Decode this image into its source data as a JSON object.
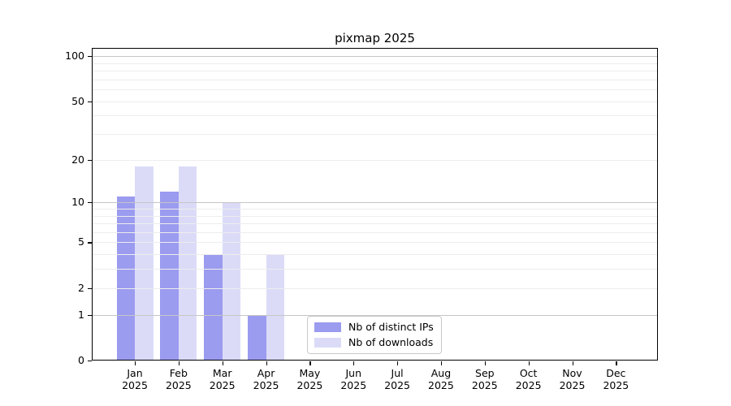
{
  "title": "pixmap 2025",
  "chart_data": {
    "type": "bar",
    "title": "pixmap 2025",
    "x_tick_labels": [
      {
        "month": "Jan",
        "year": "2025"
      },
      {
        "month": "Feb",
        "year": "2025"
      },
      {
        "month": "Mar",
        "year": "2025"
      },
      {
        "month": "Apr",
        "year": "2025"
      },
      {
        "month": "May",
        "year": "2025"
      },
      {
        "month": "Jun",
        "year": "2025"
      },
      {
        "month": "Jul",
        "year": "2025"
      },
      {
        "month": "Aug",
        "year": "2025"
      },
      {
        "month": "Sep",
        "year": "2025"
      },
      {
        "month": "Oct",
        "year": "2025"
      },
      {
        "month": "Nov",
        "year": "2025"
      },
      {
        "month": "Dec",
        "year": "2025"
      }
    ],
    "series": [
      {
        "name": "Nb of distinct IPs",
        "color": "#9b9bf0",
        "values": [
          11,
          12,
          4,
          1,
          0,
          0,
          0,
          0,
          0,
          0,
          0,
          0
        ]
      },
      {
        "name": "Nb of downloads",
        "color": "#dbdbf8",
        "values": [
          18,
          18,
          10,
          4,
          0,
          0,
          0,
          0,
          0,
          0,
          0,
          0
        ]
      }
    ],
    "y_axis": {
      "scale": "log10(1+v)",
      "tick_values": [
        0,
        1,
        2,
        5,
        10,
        20,
        50,
        100
      ],
      "major_grid_values": [
        1,
        10,
        100
      ],
      "minor_grid_values": [
        2,
        3,
        4,
        5,
        6,
        7,
        8,
        9,
        20,
        30,
        40,
        50,
        60,
        70,
        80,
        90
      ],
      "ylim": [
        0,
        113
      ]
    },
    "grid": "on",
    "legend_position": "lower center"
  },
  "colors": {
    "series1": "#9b9bf0",
    "series2": "#dbdbf8",
    "major_grid": "#c6c6c6",
    "minor_grid": "#ededed",
    "spine": "#000000"
  }
}
